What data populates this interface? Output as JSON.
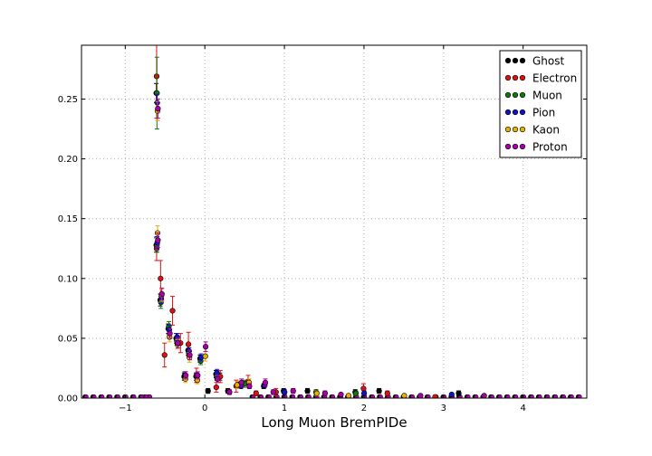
{
  "chart_data": {
    "type": "scatter",
    "title": "",
    "xlabel": "Long Muon BremPIDe",
    "ylabel": "",
    "xlim": [
      -1.55,
      4.8
    ],
    "ylim": [
      0.0,
      0.295
    ],
    "grid": true,
    "legend_position": "top-right",
    "x_ticks": [
      -1,
      0,
      1,
      2,
      3,
      4
    ],
    "x_tick_labels": [
      "−1",
      "0",
      "1",
      "2",
      "3",
      "4"
    ],
    "y_ticks": [
      0.0,
      0.05,
      0.1,
      0.15,
      0.2,
      0.25
    ],
    "y_tick_labels": [
      "0.00",
      "0.05",
      "0.10",
      "0.15",
      "0.20",
      "0.25"
    ],
    "series": [
      {
        "name": "Ghost",
        "color": "#000000",
        "offset": -0.01,
        "points": [
          [
            -0.6,
            0.255,
            0.008
          ],
          [
            -0.6,
            0.128,
            0.006
          ],
          [
            -0.55,
            0.082,
            0.005
          ],
          [
            -0.45,
            0.058,
            0.004
          ],
          [
            -0.35,
            0.05,
            0.004
          ],
          [
            -0.25,
            0.018,
            0.003
          ],
          [
            -0.2,
            0.04,
            0.004
          ],
          [
            -0.1,
            0.018,
            0.003
          ],
          [
            -0.05,
            0.033,
            0.003
          ],
          [
            0.05,
            0.006,
            0.002
          ],
          [
            0.15,
            0.02,
            0.003
          ],
          [
            0.2,
            0.018,
            0.003
          ],
          [
            0.3,
            0.006,
            0.002
          ],
          [
            0.45,
            0.012,
            0.002
          ],
          [
            0.75,
            0.01,
            0.002
          ],
          [
            1.0,
            0.006,
            0.002
          ],
          [
            1.3,
            0.006,
            0.002
          ],
          [
            1.9,
            0.005,
            0.002
          ],
          [
            2.2,
            0.006,
            0.002
          ],
          [
            3.2,
            0.004,
            0.002
          ]
        ]
      },
      {
        "name": "Electron",
        "color": "#dd1111",
        "offset": -0.006,
        "points": [
          [
            -0.6,
            0.269,
            0.035
          ],
          [
            -0.6,
            0.125,
            0.01
          ],
          [
            -0.55,
            0.1,
            0.015
          ],
          [
            -0.5,
            0.036,
            0.01
          ],
          [
            -0.4,
            0.073,
            0.012
          ],
          [
            -0.3,
            0.046,
            0.008
          ],
          [
            -0.2,
            0.045,
            0.01
          ],
          [
            -0.1,
            0.019,
            0.006
          ],
          [
            0.15,
            0.009,
            0.004
          ],
          [
            0.2,
            0.018,
            0.005
          ],
          [
            0.4,
            0.01,
            0.005
          ],
          [
            0.55,
            0.014,
            0.005
          ],
          [
            0.65,
            0.004,
            0.002
          ],
          [
            0.9,
            0.005,
            0.003
          ],
          [
            2.0,
            0.008,
            0.004
          ],
          [
            2.3,
            0.004,
            0.002
          ],
          [
            2.9,
            0.001,
            0.001
          ]
        ]
      },
      {
        "name": "Muon",
        "color": "#117711",
        "offset": -0.002,
        "points": [
          [
            -0.6,
            0.255,
            0.03
          ],
          [
            -0.6,
            0.128,
            0.006
          ],
          [
            -0.55,
            0.08,
            0.005
          ],
          [
            -0.45,
            0.06,
            0.004
          ],
          [
            -0.35,
            0.048,
            0.004
          ],
          [
            -0.25,
            0.019,
            0.003
          ],
          [
            -0.2,
            0.038,
            0.004
          ],
          [
            -0.05,
            0.031,
            0.003
          ],
          [
            0.15,
            0.018,
            0.003
          ],
          [
            0.5,
            0.012,
            0.003
          ],
          [
            1.4,
            0.005,
            0.002
          ],
          [
            1.9,
            0.004,
            0.002
          ]
        ]
      },
      {
        "name": "Pion",
        "color": "#1111cc",
        "offset": 0.002,
        "points": [
          [
            -0.6,
            0.247,
            0.007
          ],
          [
            -0.6,
            0.13,
            0.005
          ],
          [
            -0.55,
            0.083,
            0.004
          ],
          [
            -0.45,
            0.057,
            0.004
          ],
          [
            -0.35,
            0.051,
            0.003
          ],
          [
            -0.25,
            0.019,
            0.003
          ],
          [
            -0.2,
            0.039,
            0.003
          ],
          [
            -0.1,
            0.018,
            0.003
          ],
          [
            -0.05,
            0.034,
            0.003
          ],
          [
            0.15,
            0.021,
            0.003
          ],
          [
            0.45,
            0.01,
            0.002
          ],
          [
            0.75,
            0.011,
            0.002
          ],
          [
            1.0,
            0.005,
            0.002
          ],
          [
            2.0,
            0.004,
            0.002
          ],
          [
            3.1,
            0.003,
            0.001
          ]
        ]
      },
      {
        "name": "Kaon",
        "color": "#e8b000",
        "offset": 0.006,
        "points": [
          [
            -0.6,
            0.24,
            0.008
          ],
          [
            -0.6,
            0.138,
            0.006
          ],
          [
            -0.55,
            0.086,
            0.005
          ],
          [
            -0.45,
            0.051,
            0.004
          ],
          [
            -0.35,
            0.045,
            0.004
          ],
          [
            -0.25,
            0.016,
            0.003
          ],
          [
            -0.2,
            0.034,
            0.004
          ],
          [
            -0.1,
            0.015,
            0.003
          ],
          [
            0.0,
            0.035,
            0.004
          ],
          [
            0.15,
            0.016,
            0.003
          ],
          [
            0.4,
            0.011,
            0.003
          ],
          [
            0.55,
            0.013,
            0.003
          ],
          [
            1.4,
            0.004,
            0.002
          ],
          [
            1.8,
            0.002,
            0.001
          ],
          [
            2.5,
            0.002,
            0.001
          ]
        ]
      },
      {
        "name": "Proton",
        "color": "#aa00aa",
        "offset": 0.01,
        "points": [
          [
            -0.6,
            0.242,
            0.008
          ],
          [
            -0.6,
            0.132,
            0.006
          ],
          [
            -0.55,
            0.087,
            0.005
          ],
          [
            -0.45,
            0.054,
            0.004
          ],
          [
            -0.35,
            0.046,
            0.004
          ],
          [
            -0.25,
            0.019,
            0.003
          ],
          [
            -0.2,
            0.036,
            0.004
          ],
          [
            -0.1,
            0.019,
            0.003
          ],
          [
            0.0,
            0.043,
            0.004
          ],
          [
            0.15,
            0.016,
            0.003
          ],
          [
            0.3,
            0.005,
            0.002
          ],
          [
            0.45,
            0.013,
            0.003
          ],
          [
            0.55,
            0.01,
            0.002
          ],
          [
            0.75,
            0.013,
            0.003
          ],
          [
            0.85,
            0.005,
            0.002
          ],
          [
            1.1,
            0.006,
            0.002
          ],
          [
            1.5,
            0.004,
            0.002
          ],
          [
            1.7,
            0.003,
            0.001
          ],
          [
            2.7,
            0.002,
            0.001
          ],
          [
            3.5,
            0.002,
            0.001
          ]
        ]
      }
    ],
    "baseline_bins": {
      "values": [
        -1.5,
        -1.4,
        -1.3,
        -1.2,
        -1.1,
        -1.0,
        -0.9,
        -0.8,
        -0.75,
        -0.7,
        0.6,
        0.7,
        0.8,
        0.9,
        1.0,
        1.1,
        1.2,
        1.3,
        1.4,
        1.5,
        1.6,
        1.7,
        1.8,
        1.9,
        2.0,
        2.1,
        2.2,
        2.3,
        2.4,
        2.5,
        2.6,
        2.7,
        2.8,
        2.9,
        3.0,
        3.1,
        3.2,
        3.3,
        3.4,
        3.5,
        3.6,
        3.7,
        3.8,
        3.9,
        4.0,
        4.1,
        4.2,
        4.3,
        4.4,
        4.5,
        4.6,
        4.7
      ],
      "level": 0.0012
    }
  }
}
